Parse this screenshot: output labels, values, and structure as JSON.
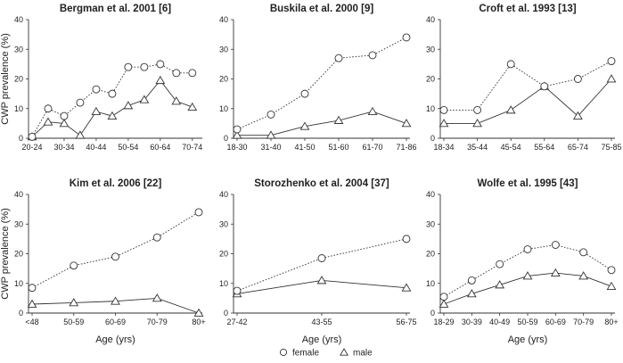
{
  "chart_data": [
    {
      "type": "line",
      "title": "Bergman et al. 2001 [6]",
      "ylabel": "CWP prevalence (%)",
      "xlabel": "",
      "ylim": [
        0,
        40
      ],
      "yticks": [
        0,
        10,
        20,
        30,
        40
      ],
      "x_tick_labels": [
        "20-24",
        "30-34",
        "40-44",
        "50-54",
        "60-64",
        "70-74"
      ],
      "series": [
        {
          "name": "female",
          "marker": "circle",
          "line": "dotted",
          "x": [
            20,
            25,
            30,
            35,
            40,
            45,
            50,
            55,
            60,
            65,
            70
          ],
          "y": [
            0.5,
            10,
            7.5,
            12,
            16.5,
            15,
            24,
            24,
            25,
            22,
            22
          ]
        },
        {
          "name": "male",
          "marker": "triangle",
          "line": "solid",
          "x": [
            20,
            25,
            30,
            35,
            40,
            45,
            50,
            55,
            60,
            65,
            70
          ],
          "y": [
            0.5,
            5.5,
            5,
            1,
            9,
            7.5,
            11,
            13,
            19.5,
            12.5,
            10.5
          ]
        }
      ]
    },
    {
      "type": "line",
      "title": "Buskila et al. 2000 [9]",
      "ylabel": "",
      "xlabel": "",
      "ylim": [
        0,
        40
      ],
      "yticks": [
        0,
        10,
        20,
        30,
        40
      ],
      "x_tick_labels": [
        "18-30",
        "31-40",
        "41-50",
        "51-60",
        "61-70",
        "71-86"
      ],
      "series": [
        {
          "name": "female",
          "marker": "circle",
          "line": "dotted",
          "x": [
            0,
            1,
            2,
            3,
            4,
            5
          ],
          "y": [
            3,
            8,
            15,
            27,
            28,
            34
          ]
        },
        {
          "name": "male",
          "marker": "triangle",
          "line": "solid",
          "x": [
            0,
            1,
            2,
            3,
            4,
            5
          ],
          "y": [
            1,
            1,
            4,
            6,
            9,
            5
          ]
        }
      ]
    },
    {
      "type": "line",
      "title": "Croft et al. 1993 [13]",
      "ylabel": "",
      "xlabel": "",
      "ylim": [
        0,
        40
      ],
      "yticks": [
        0,
        10,
        20,
        30,
        40
      ],
      "x_tick_labels": [
        "18-34",
        "35-44",
        "45-54",
        "55-64",
        "65-74",
        "75-85"
      ],
      "series": [
        {
          "name": "female",
          "marker": "circle",
          "line": "dotted",
          "x": [
            0,
            1,
            2,
            3,
            4,
            5
          ],
          "y": [
            9.5,
            9.5,
            25,
            17.5,
            20,
            26
          ]
        },
        {
          "name": "male",
          "marker": "triangle",
          "line": "solid",
          "x": [
            0,
            1,
            2,
            3,
            4,
            5
          ],
          "y": [
            5,
            5,
            9.5,
            17.5,
            7.5,
            20
          ]
        }
      ]
    },
    {
      "type": "line",
      "title": "Kim et al. 2006 [22]",
      "ylabel": "CWP prevalence (%)",
      "xlabel": "Age (yrs)",
      "ylim": [
        0,
        40
      ],
      "yticks": [
        0,
        10,
        20,
        30,
        40
      ],
      "x_tick_labels": [
        "<48",
        "50-59",
        "60-69",
        "70-79",
        "80+"
      ],
      "series": [
        {
          "name": "female",
          "marker": "circle",
          "line": "dotted",
          "x": [
            0,
            1,
            2,
            3,
            4
          ],
          "y": [
            8.5,
            16,
            19,
            25.5,
            34
          ]
        },
        {
          "name": "male",
          "marker": "triangle",
          "line": "solid",
          "x": [
            0,
            1,
            2,
            3,
            4
          ],
          "y": [
            3,
            3.5,
            4,
            5,
            0
          ]
        }
      ]
    },
    {
      "type": "line",
      "title": "Storozhenko et al. 2004 [37]",
      "ylabel": "",
      "xlabel": "Age (yrs)",
      "ylim": [
        0,
        40
      ],
      "yticks": [
        0,
        10,
        20,
        30,
        40
      ],
      "x_tick_labels": [
        "27-42",
        "43-55",
        "56-75"
      ],
      "series": [
        {
          "name": "female",
          "marker": "circle",
          "line": "dotted",
          "x": [
            0,
            1,
            2
          ],
          "y": [
            7.5,
            18.5,
            25
          ]
        },
        {
          "name": "male",
          "marker": "triangle",
          "line": "solid",
          "x": [
            0,
            1,
            2
          ],
          "y": [
            6.5,
            11,
            8.5
          ]
        }
      ]
    },
    {
      "type": "line",
      "title": "Wolfe et al. 1995 [43]",
      "ylabel": "",
      "xlabel": "Age (yrs)",
      "ylim": [
        0,
        40
      ],
      "yticks": [
        0,
        10,
        20,
        30,
        40
      ],
      "x_tick_labels": [
        "18-29",
        "30-39",
        "40-49",
        "50-59",
        "60-69",
        "70-79",
        "80+"
      ],
      "series": [
        {
          "name": "female",
          "marker": "circle",
          "line": "dotted",
          "x": [
            0,
            1,
            2,
            3,
            4,
            5,
            6
          ],
          "y": [
            5.5,
            11,
            16.5,
            21.5,
            23,
            20.5,
            14.5
          ]
        },
        {
          "name": "male",
          "marker": "triangle",
          "line": "solid",
          "x": [
            0,
            1,
            2,
            3,
            4,
            5,
            6
          ],
          "y": [
            3,
            6.5,
            9.5,
            12.5,
            13.5,
            12.5,
            9
          ]
        }
      ]
    }
  ],
  "legend": {
    "placement": "bottom-center",
    "items": [
      {
        "label": "female",
        "marker": "circle"
      },
      {
        "label": "male",
        "marker": "triangle"
      }
    ]
  }
}
